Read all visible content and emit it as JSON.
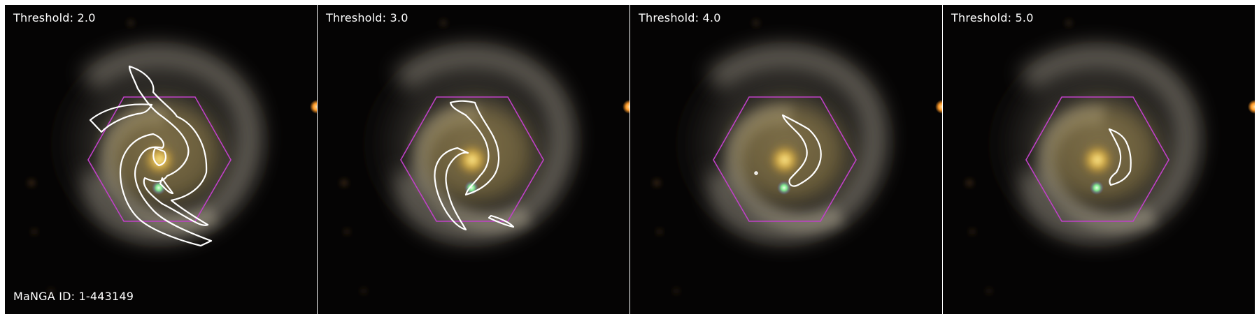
{
  "figure": {
    "panels": [
      {
        "threshold_label": "Threshold: 2.0"
      },
      {
        "threshold_label": "Threshold: 3.0"
      },
      {
        "threshold_label": "Threshold: 4.0"
      },
      {
        "threshold_label": "Threshold: 5.0"
      }
    ],
    "manga_id_label": "MaNGA ID: 1-443149"
  },
  "colors": {
    "background": "#050404",
    "contour": "#ffffff",
    "hexagon": "#c040c8",
    "bulge": "#ffd060",
    "companion_star": "#80ff90",
    "edge_star": "#ffa030"
  }
}
